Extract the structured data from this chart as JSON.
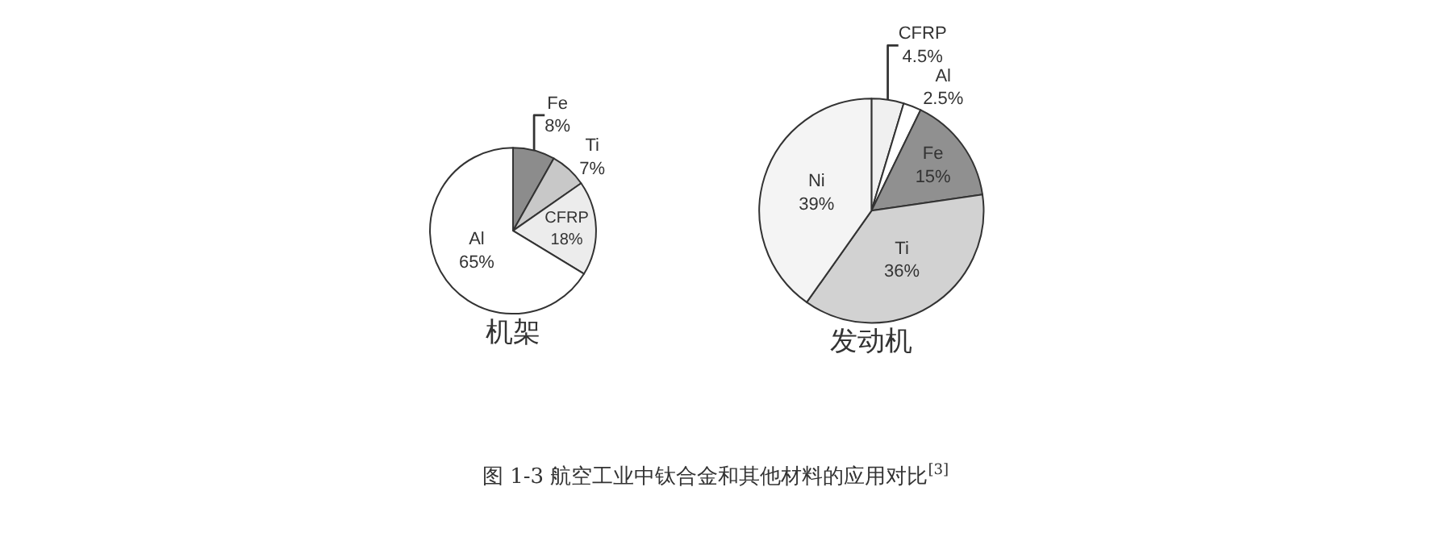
{
  "chart_data": [
    {
      "type": "pie",
      "title": "机架",
      "categories": [
        "Fe",
        "Ti",
        "CFRP",
        "Al"
      ],
      "values": [
        8,
        7,
        18,
        65
      ],
      "value_labels": [
        "8%",
        "7%",
        "18%",
        "65%"
      ],
      "colors": [
        "#8c8c8c",
        "#c8c8c8",
        "#ececec",
        "#ffffff"
      ],
      "annotations": [
        "图 1-3 航空工业中钛合金和其他材料的应用对比$^{[3]}$"
      ]
    },
    {
      "type": "pie",
      "title": "发动机",
      "categories": [
        "CFRP",
        "Al",
        "Fe",
        "Ti",
        "Ni"
      ],
      "values": [
        4.5,
        2.5,
        15,
        36,
        39
      ],
      "value_labels": [
        "4.5%",
        "2.5%",
        "15%",
        "36%",
        "39%"
      ],
      "colors": [
        "#f0f0f0",
        "#ffffff",
        "#909090",
        "#d2d2d2",
        "#f4f4f4"
      ]
    }
  ]
}
